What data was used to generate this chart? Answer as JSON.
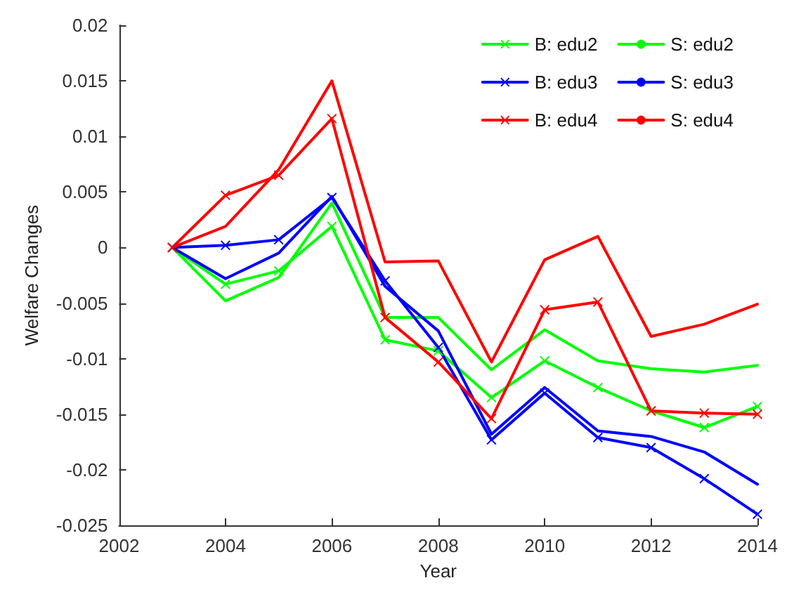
{
  "chart_data": {
    "type": "line",
    "xlabel": "Year",
    "ylabel": "Welfare Changes",
    "x": [
      2003,
      2004,
      2005,
      2006,
      2007,
      2008,
      2009,
      2010,
      2011,
      2012,
      2013,
      2014
    ],
    "xlim": [
      2002,
      2014
    ],
    "xticks": [
      2002,
      2004,
      2006,
      2008,
      2010,
      2012,
      2014
    ],
    "ylim": [
      -0.025,
      0.02
    ],
    "yticks": [
      -0.025,
      -0.02,
      -0.015,
      -0.01,
      -0.005,
      0,
      0.005,
      0.01,
      0.015,
      0.02
    ],
    "grid": false,
    "legend": "top right",
    "line_style": "solid",
    "series": [
      {
        "name": "B: edu2",
        "color": "#00ff00",
        "marker": "cross",
        "values": [
          0,
          -0.0033,
          -0.0021,
          0.0019,
          -0.0083,
          -0.0093,
          -0.0135,
          -0.0102,
          -0.0126,
          -0.0147,
          -0.0162,
          -0.0143
        ]
      },
      {
        "name": "S: edu2",
        "color": "#00ff00",
        "marker": "none",
        "values": [
          0,
          -0.0048,
          -0.0027,
          0.004,
          -0.0063,
          -0.0063,
          -0.011,
          -0.0074,
          -0.0102,
          -0.0109,
          -0.0112,
          -0.0106
        ]
      },
      {
        "name": "B: edu3",
        "color": "#0000ff",
        "marker": "cross",
        "values": [
          0,
          0.0002,
          0.0007,
          0.0045,
          -0.003,
          -0.009,
          -0.0173,
          -0.0131,
          -0.0171,
          -0.018,
          -0.0208,
          -0.024
        ]
      },
      {
        "name": "S: edu3",
        "color": "#0000ff",
        "marker": "none",
        "values": [
          0,
          -0.0028,
          -0.0005,
          0.0046,
          -0.0035,
          -0.0075,
          -0.0168,
          -0.0126,
          -0.0165,
          -0.017,
          -0.0184,
          -0.0213
        ]
      },
      {
        "name": "B: edu4",
        "color": "#ff0000",
        "marker": "cross",
        "values": [
          0,
          0.0047,
          0.0065,
          0.0116,
          -0.0063,
          -0.0103,
          -0.0154,
          -0.0056,
          -0.0049,
          -0.0147,
          -0.0149,
          -0.015
        ]
      },
      {
        "name": "S: edu4",
        "color": "#ff0000",
        "marker": "none",
        "values": [
          0,
          0.0019,
          0.007,
          0.015,
          -0.0013,
          -0.0012,
          -0.0103,
          -0.0011,
          0.001,
          -0.008,
          -0.0069,
          -0.0051
        ]
      }
    ]
  }
}
